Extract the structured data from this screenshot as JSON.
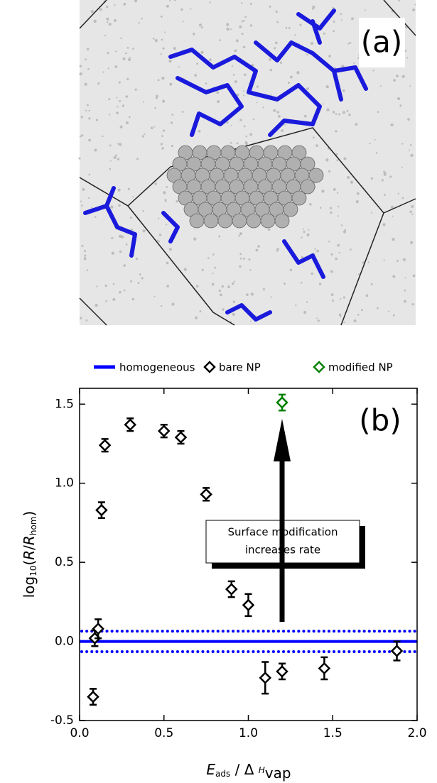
{
  "chart_data": {
    "type": "scatter",
    "panel_labels": [
      "(a)",
      "(b)"
    ],
    "xlabel": [
      "E",
      "ads",
      " / Δ ",
      "H",
      "vap"
    ],
    "ylabel": [
      "log",
      "10",
      "(",
      "R",
      "/",
      "R",
      "hom",
      ")"
    ],
    "xlim": [
      0,
      2
    ],
    "ylim": [
      -0.5,
      1.6
    ],
    "xticks": [
      {
        "value": 0,
        "label": "0.0"
      },
      0.5,
      {
        "value": 1,
        "label": "1.0"
      },
      1.5,
      {
        "value": 2,
        "label": "2.0"
      }
    ],
    "yticks": [
      -0.5,
      {
        "value": 0,
        "label": "0.0"
      },
      0.5,
      {
        "value": 1,
        "label": "1.0"
      },
      1.5
    ],
    "annotation": [
      "Surface modification",
      "increases rate"
    ],
    "series": [
      {
        "name": "homogeneous",
        "color": "#0000ff",
        "level": 0,
        "band": 0.065
      },
      {
        "name": "bare NP",
        "color": "#000000",
        "x": [
          0.08,
          0.09,
          0.11,
          0.13,
          0.15,
          0.3,
          0.5,
          0.6,
          0.75,
          0.9,
          1.0,
          1.1,
          1.2,
          1.45,
          1.88
        ],
        "values": [
          -0.35,
          0.02,
          0.08,
          0.83,
          1.24,
          1.37,
          1.33,
          1.29,
          0.93,
          0.33,
          0.23,
          -0.23,
          -0.19,
          -0.17,
          -0.06
        ],
        "errors": [
          0.05,
          0.05,
          0.06,
          0.05,
          0.04,
          0.04,
          0.04,
          0.04,
          0.04,
          0.05,
          0.07,
          0.1,
          0.05,
          0.07,
          0.06
        ]
      },
      {
        "name": "modified NP",
        "color": "#008000",
        "x": [
          1.2
        ],
        "values": [
          1.51
        ],
        "errors": [
          0.05
        ]
      }
    ]
  }
}
